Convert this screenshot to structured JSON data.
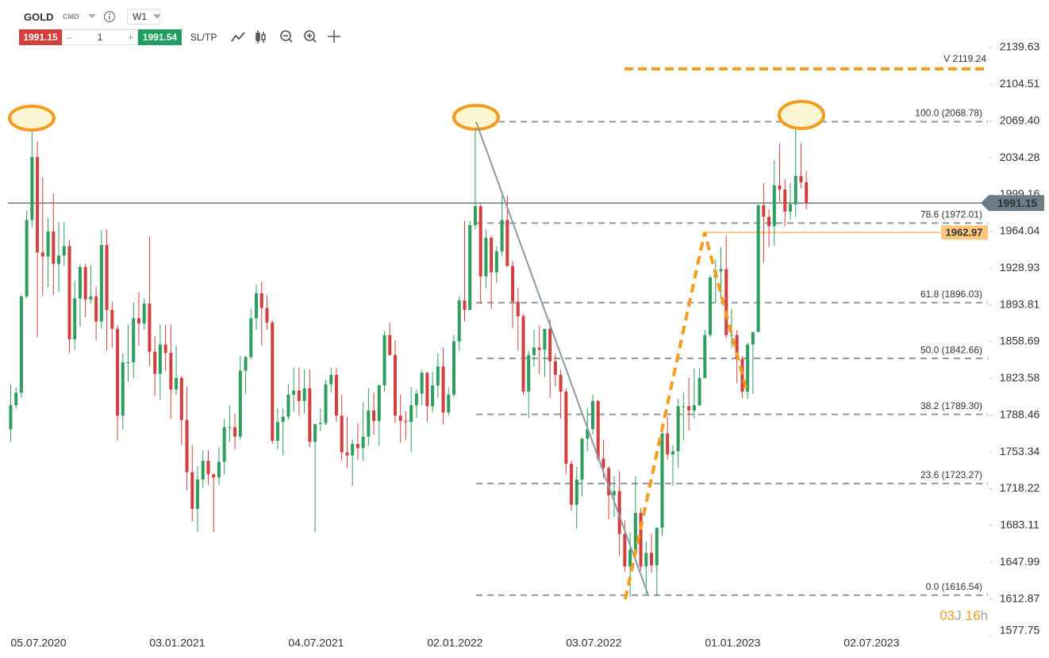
{
  "header": {
    "symbol": "GOLD",
    "market": "CMD",
    "timeframe": "W1",
    "bid": 1991.15,
    "minus": "–",
    "volume": 1,
    "plus": "+",
    "ask": 1991.54,
    "sltp": "SL/TP"
  },
  "chart_data": {
    "type": "candlestick",
    "colors": {
      "up": "#2e9e5e",
      "down": "#d23f3f"
    },
    "ohlc": [
      [
        1775,
        1818,
        1763,
        1798
      ],
      [
        1798,
        1815,
        1795,
        1810
      ],
      [
        1810,
        1903,
        1805,
        1902
      ],
      [
        1902,
        1984,
        1900,
        1975
      ],
      [
        1975,
        2075,
        1968,
        2035
      ],
      [
        2035,
        2050,
        1863,
        1944
      ],
      [
        1944,
        2016,
        1902,
        1940
      ],
      [
        1940,
        1977,
        1911,
        1964
      ],
      [
        1964,
        2000,
        1903,
        1933
      ],
      [
        1933,
        1973,
        1906,
        1941
      ],
      [
        1941,
        1973,
        1931,
        1950
      ],
      [
        1950,
        1956,
        1848,
        1861
      ],
      [
        1861,
        1917,
        1851,
        1900
      ],
      [
        1900,
        1933,
        1873,
        1930
      ],
      [
        1930,
        1933,
        1882,
        1899
      ],
      [
        1899,
        1932,
        1895,
        1902
      ],
      [
        1902,
        1911,
        1860,
        1878
      ],
      [
        1878,
        1965,
        1871,
        1951
      ],
      [
        1951,
        1966,
        1850,
        1889
      ],
      [
        1889,
        1897,
        1853,
        1871
      ],
      [
        1871,
        1875,
        1764,
        1788
      ],
      [
        1788,
        1848,
        1775,
        1839
      ],
      [
        1839,
        1875,
        1820,
        1839
      ],
      [
        1839,
        1896,
        1824,
        1881
      ],
      [
        1881,
        1906,
        1855,
        1876
      ],
      [
        1876,
        1900,
        1870,
        1895
      ],
      [
        1895,
        1959,
        1835,
        1849
      ],
      [
        1849,
        1864,
        1807,
        1828
      ],
      [
        1828,
        1875,
        1803,
        1856
      ],
      [
        1856,
        1875,
        1831,
        1848
      ],
      [
        1848,
        1875,
        1785,
        1813
      ],
      [
        1813,
        1855,
        1808,
        1824
      ],
      [
        1824,
        1826,
        1760,
        1784
      ],
      [
        1784,
        1816,
        1717,
        1734
      ],
      [
        1734,
        1760,
        1687,
        1699
      ],
      [
        1699,
        1740,
        1677,
        1727
      ],
      [
        1727,
        1755,
        1719,
        1745
      ],
      [
        1745,
        1755,
        1722,
        1732
      ],
      [
        1732,
        1733,
        1677,
        1729
      ],
      [
        1729,
        1758,
        1722,
        1744
      ],
      [
        1744,
        1785,
        1732,
        1777
      ],
      [
        1777,
        1798,
        1763,
        1777
      ],
      [
        1777,
        1790,
        1756,
        1768
      ],
      [
        1768,
        1845,
        1765,
        1831
      ],
      [
        1831,
        1845,
        1809,
        1844
      ],
      [
        1844,
        1890,
        1842,
        1881
      ],
      [
        1881,
        1913,
        1870,
        1905
      ],
      [
        1905,
        1916,
        1855,
        1891
      ],
      [
        1891,
        1903,
        1870,
        1877
      ],
      [
        1877,
        1879,
        1761,
        1764
      ],
      [
        1764,
        1795,
        1756,
        1782
      ],
      [
        1782,
        1795,
        1750,
        1787
      ],
      [
        1787,
        1818,
        1784,
        1808
      ],
      [
        1808,
        1834,
        1792,
        1812
      ],
      [
        1812,
        1834,
        1788,
        1802
      ],
      [
        1802,
        1832,
        1790,
        1814
      ],
      [
        1814,
        1832,
        1758,
        1763
      ],
      [
        1763,
        1780,
        1677,
        1780
      ],
      [
        1780,
        1795,
        1773,
        1781
      ],
      [
        1781,
        1822,
        1779,
        1818
      ],
      [
        1818,
        1834,
        1810,
        1827
      ],
      [
        1827,
        1834,
        1782,
        1788
      ],
      [
        1788,
        1808,
        1745,
        1753
      ],
      [
        1753,
        1787,
        1738,
        1750
      ],
      [
        1750,
        1765,
        1721,
        1761
      ],
      [
        1761,
        1781,
        1746,
        1757
      ],
      [
        1757,
        1801,
        1745,
        1768
      ],
      [
        1768,
        1814,
        1759,
        1793
      ],
      [
        1793,
        1810,
        1770,
        1783
      ],
      [
        1783,
        1818,
        1759,
        1817
      ],
      [
        1817,
        1869,
        1811,
        1865
      ],
      [
        1865,
        1877,
        1845,
        1846
      ],
      [
        1846,
        1860,
        1781,
        1788
      ],
      [
        1788,
        1808,
        1762,
        1783
      ],
      [
        1783,
        1792,
        1765,
        1782
      ],
      [
        1782,
        1815,
        1753,
        1798
      ],
      [
        1798,
        1813,
        1786,
        1809
      ],
      [
        1809,
        1831,
        1798,
        1829
      ],
      [
        1829,
        1830,
        1782,
        1797
      ],
      [
        1797,
        1830,
        1791,
        1817
      ],
      [
        1817,
        1848,
        1805,
        1835
      ],
      [
        1835,
        1853,
        1780,
        1791
      ],
      [
        1791,
        1815,
        1788,
        1808
      ],
      [
        1808,
        1865,
        1806,
        1859
      ],
      [
        1859,
        1902,
        1850,
        1898
      ],
      [
        1898,
        1974,
        1878,
        1889
      ],
      [
        1889,
        1974,
        1889,
        1970
      ],
      [
        1970,
        2070,
        1966,
        1988
      ],
      [
        1988,
        1990,
        1895,
        1921
      ],
      [
        1921,
        1966,
        1910,
        1958
      ],
      [
        1958,
        1960,
        1890,
        1925
      ],
      [
        1925,
        1950,
        1915,
        1945
      ],
      [
        1945,
        1998,
        1940,
        1975
      ],
      [
        1975,
        1998,
        1930,
        1931
      ],
      [
        1931,
        1936,
        1872,
        1897
      ],
      [
        1897,
        1910,
        1850,
        1883
      ],
      [
        1883,
        1885,
        1808,
        1811
      ],
      [
        1811,
        1850,
        1786,
        1846
      ],
      [
        1846,
        1870,
        1835,
        1853
      ],
      [
        1853,
        1874,
        1828,
        1851
      ],
      [
        1851,
        1871,
        1825,
        1871
      ],
      [
        1871,
        1880,
        1805,
        1840
      ],
      [
        1840,
        1847,
        1816,
        1827
      ],
      [
        1827,
        1832,
        1785,
        1811
      ],
      [
        1811,
        1814,
        1732,
        1742
      ],
      [
        1742,
        1745,
        1697,
        1703
      ],
      [
        1703,
        1739,
        1680,
        1727
      ],
      [
        1727,
        1767,
        1711,
        1766
      ],
      [
        1766,
        1795,
        1754,
        1775
      ],
      [
        1775,
        1808,
        1770,
        1802
      ],
      [
        1802,
        1803,
        1745,
        1747
      ],
      [
        1747,
        1765,
        1728,
        1738
      ],
      [
        1738,
        1740,
        1689,
        1712
      ],
      [
        1712,
        1730,
        1691,
        1716
      ],
      [
        1716,
        1735,
        1654,
        1675
      ],
      [
        1675,
        1688,
        1639,
        1644
      ],
      [
        1644,
        1676,
        1615,
        1660
      ],
      [
        1660,
        1730,
        1659,
        1695
      ],
      [
        1695,
        1700,
        1640,
        1644
      ],
      [
        1644,
        1668,
        1618,
        1657
      ],
      [
        1657,
        1675,
        1638,
        1645
      ],
      [
        1645,
        1681,
        1616,
        1681
      ],
      [
        1681,
        1772,
        1673,
        1771
      ],
      [
        1771,
        1787,
        1746,
        1751
      ],
      [
        1751,
        1760,
        1721,
        1754
      ],
      [
        1754,
        1804,
        1738,
        1797
      ],
      [
        1797,
        1810,
        1765,
        1797
      ],
      [
        1797,
        1824,
        1774,
        1793
      ],
      [
        1793,
        1833,
        1785,
        1798
      ],
      [
        1798,
        1833,
        1797,
        1824
      ],
      [
        1824,
        1870,
        1824,
        1865
      ],
      [
        1865,
        1922,
        1863,
        1920
      ],
      [
        1920,
        1937,
        1896,
        1926
      ],
      [
        1926,
        1949,
        1900,
        1928
      ],
      [
        1928,
        1960,
        1862,
        1865
      ],
      [
        1865,
        1890,
        1853,
        1865
      ],
      [
        1865,
        1870,
        1819,
        1842
      ],
      [
        1842,
        1845,
        1805,
        1811
      ],
      [
        1811,
        1858,
        1804,
        1856
      ],
      [
        1856,
        1868,
        1809,
        1868
      ],
      [
        1868,
        1990,
        1868,
        1989
      ],
      [
        1989,
        2010,
        1934,
        1978
      ],
      [
        1978,
        1985,
        1949,
        1969
      ],
      [
        1969,
        2032,
        1950,
        2008
      ],
      [
        2008,
        2048,
        1992,
        2004
      ],
      [
        2004,
        2014,
        1969,
        1983
      ],
      [
        1983,
        2010,
        1975,
        1990
      ],
      [
        1990,
        2079,
        1978,
        2017
      ],
      [
        2017,
        2048,
        2005,
        2011
      ],
      [
        2011,
        2022,
        1985,
        1991
      ]
    ],
    "xlim": [
      -2,
      183
    ],
    "xticks": [
      {
        "value": 0,
        "label": "05.07.2020"
      },
      {
        "value": 26,
        "label": "03.01.2021"
      },
      {
        "value": 52,
        "label": "04.07.2021"
      },
      {
        "value": 78,
        "label": "02.01.2022"
      },
      {
        "value": 104,
        "label": "03.07.2022"
      },
      {
        "value": 130,
        "label": "01.01.2023"
      },
      {
        "value": 156,
        "label": "02.07.2023"
      }
    ],
    "ylim": [
      1577.75,
      2139.63
    ],
    "yticks": [
      2139.63,
      2104.51,
      {
        "value": 2069.4,
        "label": "2069.40"
      },
      2034.28,
      1999.16,
      1964.04,
      1928.93,
      1893.81,
      1858.69,
      1823.58,
      1788.46,
      1753.34,
      1718.22,
      1683.11,
      1647.99,
      1612.87,
      1577.75
    ],
    "last_price": 1991.15,
    "fib_levels": [
      {
        "value": 2068.78,
        "label": "100.0 (2068.78)"
      },
      {
        "value": 1972.01,
        "label": "78.6 (1972.01)"
      },
      {
        "value": 1896.03,
        "label": "61.8 (1896.03)"
      },
      {
        "value": 1842.66,
        "label": "50.0 (1842.66)"
      },
      {
        "value": 1789.3,
        "label": "38.2 (1789.30)"
      },
      {
        "value": 1723.27,
        "label": "23.6 (1723.27)"
      },
      {
        "value": 1616.54,
        "label": "0.0 (1616.54)"
      }
    ],
    "alert_line": 1962.97,
    "target_line": {
      "value": 2119.24,
      "label": "V 2119.24"
    },
    "countdown": [
      "03",
      "J",
      "16",
      "h"
    ]
  }
}
